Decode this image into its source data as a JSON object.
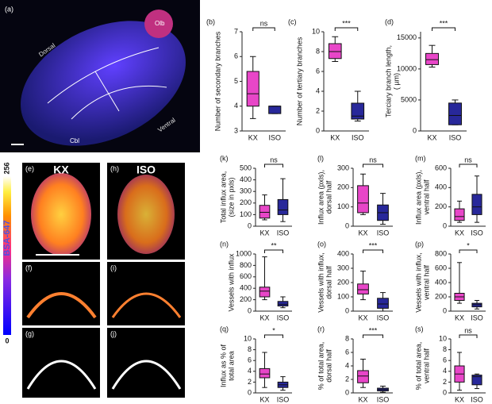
{
  "chart_data": [
    {
      "type": "box",
      "panel": "(b)",
      "ylabel": [
        "Number of secondary branches"
      ],
      "categories": [
        "KX",
        "ISO"
      ],
      "colors": [
        "#e846c8",
        "#28289a"
      ],
      "boxes": [
        {
          "min": 3.5,
          "q1": 4,
          "median": 4.5,
          "q3": 5.4,
          "max": 6
        },
        {
          "min": 3.7,
          "q1": 3.7,
          "median": 4,
          "q3": 4,
          "max": 4
        }
      ],
      "ylim": [
        3,
        7
      ],
      "yticks": [
        3,
        4,
        5,
        6,
        7
      ],
      "significance": "ns"
    },
    {
      "type": "box",
      "panel": "(c)",
      "ylabel": [
        "Number of tertiary branches"
      ],
      "categories": [
        "KX",
        "ISO"
      ],
      "colors": [
        "#e846c8",
        "#28289a"
      ],
      "boxes": [
        {
          "min": 7,
          "q1": 7.3,
          "median": 8,
          "q3": 8.8,
          "max": 9.5
        },
        {
          "min": 1,
          "q1": 1.2,
          "median": 1.5,
          "q3": 2.8,
          "max": 4
        }
      ],
      "ylim": [
        0,
        10
      ],
      "yticks": [
        0,
        2,
        4,
        6,
        8,
        10
      ],
      "significance": "***"
    },
    {
      "type": "box",
      "panel": "(d)",
      "ylabel": [
        "Terciary branch length,",
        "( µm)"
      ],
      "categories": [
        "KX",
        "ISO"
      ],
      "colors": [
        "#e846c8",
        "#28289a"
      ],
      "boxes": [
        {
          "min": 10300,
          "q1": 10700,
          "median": 11500,
          "q3": 12500,
          "max": 13800
        },
        {
          "min": 1000,
          "q1": 1000,
          "median": 2500,
          "q3": 4500,
          "max": 5000
        }
      ],
      "ylim": [
        0,
        16000
      ],
      "yticks": [
        0,
        5000,
        10000,
        15000
      ],
      "significance": "***"
    },
    {
      "type": "box",
      "panel": "(k)",
      "ylabel": [
        "Total influx area,",
        "(size in pxls)"
      ],
      "categories": [
        "KX",
        "ISO"
      ],
      "colors": [
        "#e846c8",
        "#28289a"
      ],
      "boxes": [
        {
          "min": 55,
          "q1": 70,
          "median": 120,
          "q3": 180,
          "max": 270
        },
        {
          "min": 40,
          "q1": 100,
          "median": 140,
          "q3": 230,
          "max": 410
        }
      ],
      "ylim": [
        0,
        500
      ],
      "yticks": [
        0,
        100,
        200,
        300,
        400,
        500
      ],
      "significance": "ns"
    },
    {
      "type": "box",
      "panel": "(l)",
      "ylabel": [
        "Influx area (pxls),",
        "dorsal half"
      ],
      "categories": [
        "KX",
        "ISO"
      ],
      "colors": [
        "#e846c8",
        "#28289a"
      ],
      "boxes": [
        {
          "min": 60,
          "q1": 70,
          "median": 120,
          "q3": 210,
          "max": 270
        },
        {
          "min": 10,
          "q1": 30,
          "median": 70,
          "q3": 110,
          "max": 170
        }
      ],
      "ylim": [
        0,
        300
      ],
      "yticks": [
        0,
        100,
        200,
        300
      ],
      "significance": "ns"
    },
    {
      "type": "box",
      "panel": "(m)",
      "ylabel": [
        "Influx  area (pxls),",
        "ventral half"
      ],
      "categories": [
        "KX",
        "ISO"
      ],
      "colors": [
        "#e846c8",
        "#28289a"
      ],
      "boxes": [
        {
          "min": 40,
          "q1": 60,
          "median": 100,
          "q3": 180,
          "max": 260
        },
        {
          "min": 40,
          "q1": 120,
          "median": 200,
          "q3": 330,
          "max": 520
        }
      ],
      "ylim": [
        0,
        600
      ],
      "yticks": [
        0,
        200,
        400,
        600
      ],
      "significance": "ns"
    },
    {
      "type": "box",
      "panel": "(n)",
      "ylabel": [
        "Vessels with influx"
      ],
      "categories": [
        "KX",
        "ISO"
      ],
      "colors": [
        "#e846c8",
        "#28289a"
      ],
      "boxes": [
        {
          "min": 200,
          "q1": 250,
          "median": 350,
          "q3": 420,
          "max": 950
        },
        {
          "min": 60,
          "q1": 90,
          "median": 120,
          "q3": 170,
          "max": 250
        }
      ],
      "ylim": [
        0,
        1000
      ],
      "yticks": [
        0,
        200,
        400,
        600,
        800,
        1000
      ],
      "significance": "**"
    },
    {
      "type": "box",
      "panel": "(o)",
      "ylabel": [
        "Vessels with influx,",
        "dorsal half"
      ],
      "categories": [
        "KX",
        "ISO"
      ],
      "colors": [
        "#e846c8",
        "#28289a"
      ],
      "boxes": [
        {
          "min": 80,
          "q1": 120,
          "median": 150,
          "q3": 190,
          "max": 280
        },
        {
          "min": 0,
          "q1": 20,
          "median": 50,
          "q3": 90,
          "max": 130
        }
      ],
      "ylim": [
        0,
        400
      ],
      "yticks": [
        0,
        100,
        200,
        300,
        400
      ],
      "significance": "***"
    },
    {
      "type": "box",
      "panel": "(p)",
      "ylabel": [
        "Vessels with influx,",
        "ventral half"
      ],
      "categories": [
        "KX",
        "ISO"
      ],
      "colors": [
        "#e846c8",
        "#28289a"
      ],
      "boxes": [
        {
          "min": 110,
          "q1": 150,
          "median": 200,
          "q3": 250,
          "max": 680
        },
        {
          "min": 30,
          "q1": 60,
          "median": 90,
          "q3": 110,
          "max": 150
        }
      ],
      "ylim": [
        0,
        800
      ],
      "yticks": [
        0,
        200,
        400,
        600,
        800
      ],
      "significance": "*"
    },
    {
      "type": "box",
      "panel": "(q)",
      "ylabel": [
        "Influx as % of",
        "total area"
      ],
      "categories": [
        "KX",
        "ISO"
      ],
      "colors": [
        "#e846c8",
        "#28289a"
      ],
      "boxes": [
        {
          "min": 1,
          "q1": 2.8,
          "median": 3.5,
          "q3": 4.5,
          "max": 7.5
        },
        {
          "min": 0.5,
          "q1": 1,
          "median": 1.5,
          "q3": 2,
          "max": 3
        }
      ],
      "ylim": [
        0,
        10
      ],
      "yticks": [
        0,
        2,
        4,
        6,
        8,
        10
      ],
      "significance": "*"
    },
    {
      "type": "box",
      "panel": "(r)",
      "ylabel": [
        "% of total area,",
        "dorsal half"
      ],
      "categories": [
        "KX",
        "ISO"
      ],
      "colors": [
        "#e846c8",
        "#28289a"
      ],
      "boxes": [
        {
          "min": 0.8,
          "q1": 1.5,
          "median": 2.5,
          "q3": 3.3,
          "max": 5
        },
        {
          "min": 0.1,
          "q1": 0.3,
          "median": 0.5,
          "q3": 0.7,
          "max": 1
        }
      ],
      "ylim": [
        0,
        8
      ],
      "yticks": [
        0,
        2,
        4,
        6,
        8
      ],
      "significance": "***"
    },
    {
      "type": "box",
      "panel": "(s)",
      "ylabel": [
        "% of total area,",
        "ventral half"
      ],
      "categories": [
        "KX",
        "ISO"
      ],
      "colors": [
        "#e846c8",
        "#28289a"
      ],
      "boxes": [
        {
          "min": 0.5,
          "q1": 2,
          "median": 3.5,
          "q3": 5,
          "max": 7.5
        },
        {
          "min": 0.8,
          "q1": 1.5,
          "median": 3,
          "q3": 3.3,
          "max": 3.5
        }
      ],
      "ylim": [
        0,
        10
      ],
      "yticks": [
        0,
        2,
        4,
        6,
        8,
        10
      ],
      "significance": "ns"
    }
  ],
  "images": {
    "a": {
      "panel": "(a)",
      "labels": [
        "Olb",
        "Dorsal",
        "Ventral",
        "Cbl"
      ]
    },
    "e": {
      "panel": "(e)",
      "title": "KX"
    },
    "h": {
      "panel": "(h)",
      "title": "ISO"
    },
    "f": {
      "panel": "(f)"
    },
    "i": {
      "panel": "(i)"
    },
    "g": {
      "panel": "(g)"
    },
    "j": {
      "panel": "(j)"
    }
  },
  "colorbar": {
    "max": 256,
    "min": 0,
    "label": "BSA-647"
  }
}
